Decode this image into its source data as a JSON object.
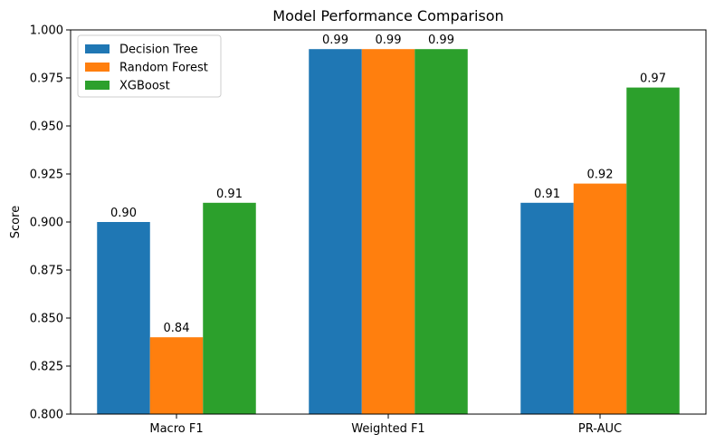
{
  "chart_data": {
    "type": "bar",
    "title": "Model Performance Comparison",
    "xlabel": "",
    "ylabel": "Score",
    "categories": [
      "Macro F1",
      "Weighted F1",
      "PR-AUC"
    ],
    "series": [
      {
        "name": "Decision Tree",
        "values": [
          0.9,
          0.99,
          0.91
        ],
        "labels": [
          "0.90",
          "0.99",
          "0.91"
        ],
        "color": "#1f77b4"
      },
      {
        "name": "Random Forest",
        "values": [
          0.84,
          0.99,
          0.92
        ],
        "labels": [
          "0.84",
          "0.99",
          "0.92"
        ],
        "color": "#ff7f0e"
      },
      {
        "name": "XGBoost",
        "values": [
          0.91,
          0.99,
          0.97
        ],
        "labels": [
          "0.91",
          "0.99",
          "0.97"
        ],
        "color": "#2ca02c"
      }
    ],
    "ylim": [
      0.8,
      1.0
    ],
    "yticks": [
      "0.800",
      "0.825",
      "0.850",
      "0.875",
      "0.900",
      "0.925",
      "0.950",
      "0.975",
      "1.000"
    ],
    "grid": false,
    "legend_position": "top-left"
  }
}
